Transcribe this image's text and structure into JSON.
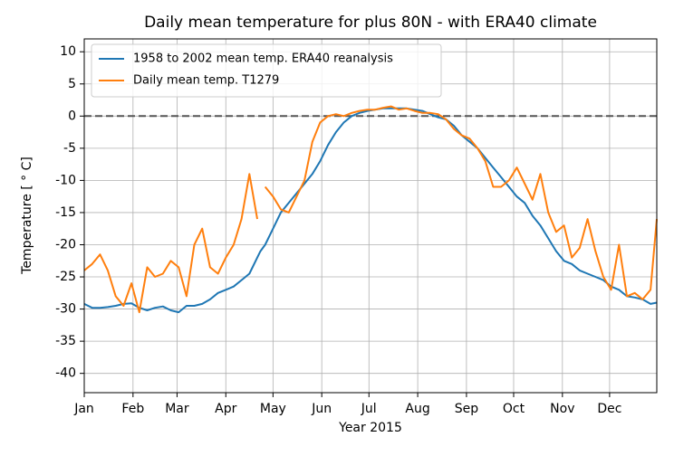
{
  "chart_data": {
    "type": "line",
    "title": "Daily mean temperature for plus 80N - with ERA40 climate",
    "xlabel": "Year 2015",
    "ylabel": "Temperature [ ° C]",
    "x": [
      0,
      5,
      10,
      15,
      20,
      25,
      30,
      35,
      40,
      45,
      50,
      55,
      60,
      65,
      70,
      75,
      80,
      85,
      90,
      95,
      100,
      105,
      110,
      112,
      115,
      120,
      125,
      130,
      135,
      140,
      145,
      150,
      155,
      160,
      165,
      170,
      175,
      180,
      185,
      190,
      195,
      200,
      205,
      210,
      215,
      220,
      225,
      230,
      235,
      240,
      245,
      250,
      255,
      260,
      265,
      270,
      275,
      280,
      285,
      290,
      295,
      300,
      305,
      310,
      315,
      320,
      325,
      330,
      335,
      340,
      345,
      350,
      355,
      360,
      364
    ],
    "series": [
      {
        "name": "1958 to 2002 mean temp. ERA40 reanalysis",
        "color": "#1f77b4",
        "values": [
          -29.2,
          -29.8,
          -29.8,
          -29.7,
          -29.5,
          -29.2,
          -29.1,
          -29.8,
          -30.2,
          -29.8,
          -29.6,
          -30.2,
          -30.5,
          -29.5,
          -29.5,
          -29.2,
          -28.5,
          -27.5,
          -27,
          -26.5,
          -25.5,
          -24.5,
          -22,
          -21,
          -20,
          -17.5,
          -15,
          -13.5,
          -12,
          -10.5,
          -9,
          -7,
          -4.5,
          -2.5,
          -1,
          0,
          0.5,
          0.8,
          1,
          1.2,
          1.2,
          1.2,
          1.2,
          1,
          0.8,
          0.3,
          -0.2,
          -0.5,
          -1.5,
          -3,
          -4,
          -5,
          -6.5,
          -8,
          -9.5,
          -11,
          -12.5,
          -13.5,
          -15.5,
          -17,
          -19,
          -21,
          -22.5,
          -23,
          -24,
          -24.5,
          -25,
          -25.5,
          -26.5,
          -27,
          -28,
          -28.2,
          -28.5,
          -29.2,
          -29
        ]
      },
      {
        "name": "Daily mean temp. T1279",
        "color": "#ff7f0e",
        "values": [
          -24,
          -23,
          -21.5,
          -24,
          -28,
          -29.5,
          -26,
          -30.5,
          -23.5,
          -25,
          -24.5,
          -22.5,
          -23.5,
          -28,
          -20,
          -17.5,
          -23.5,
          -24.5,
          -22,
          -20,
          -16,
          -9,
          -16,
          null,
          -11,
          -12.5,
          -14.5,
          -15,
          -12.5,
          -10,
          -4,
          -1,
          0,
          0.3,
          0,
          0.5,
          0.8,
          1,
          1,
          1.3,
          1.5,
          1,
          1.2,
          0.8,
          0.5,
          0.5,
          0.3,
          -0.5,
          -2,
          -3,
          -3.5,
          -5,
          -7,
          -11,
          -11,
          -10,
          -8,
          -10.5,
          -13,
          -9,
          -15,
          -18,
          -17,
          -22,
          -20.5,
          -16,
          -21,
          -25,
          -27,
          -20,
          -28,
          -27.5,
          -28.5,
          -27,
          -16
        ]
      }
    ],
    "xlim": [
      0,
      364
    ],
    "xticks": [
      {
        "value": 0,
        "label": "Jan"
      },
      {
        "value": 31,
        "label": "Feb"
      },
      {
        "value": 59,
        "label": "Mar"
      },
      {
        "value": 90,
        "label": "Apr"
      },
      {
        "value": 120,
        "label": "May"
      },
      {
        "value": 151,
        "label": "Jun"
      },
      {
        "value": 181,
        "label": "Jul"
      },
      {
        "value": 212,
        "label": "Aug"
      },
      {
        "value": 243,
        "label": "Sep"
      },
      {
        "value": 273,
        "label": "Oct"
      },
      {
        "value": 304,
        "label": "Nov"
      },
      {
        "value": 334,
        "label": "Dec"
      }
    ],
    "ylim": [
      -43,
      12
    ],
    "yticks": [
      -40,
      -35,
      -30,
      -25,
      -20,
      -15,
      -10,
      -5,
      0,
      5,
      10
    ],
    "reference_line": 0,
    "grid": true,
    "legend": "upper left"
  }
}
